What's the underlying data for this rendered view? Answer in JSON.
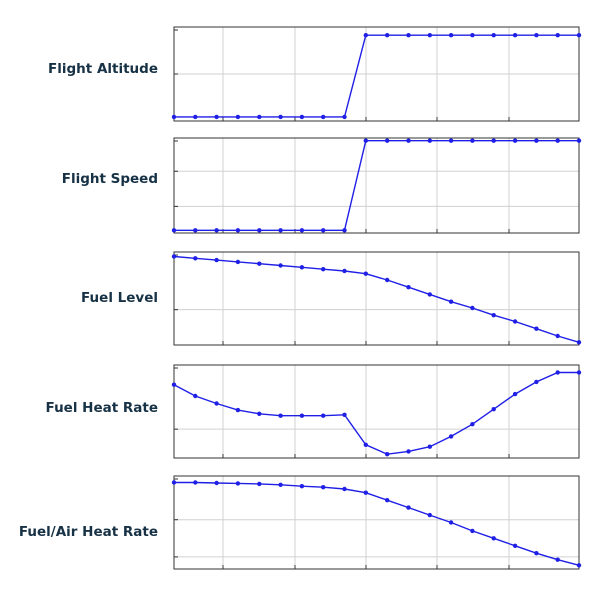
{
  "colors": {
    "line": "#1f1fe6",
    "grid": "#d0d0d0",
    "frame": "#333333",
    "label": "#173145"
  },
  "chart_data": [
    {
      "type": "line",
      "ylabel": "Flight Altitude",
      "grid": true,
      "x": [
        0,
        1,
        2,
        3,
        4,
        5,
        6,
        7,
        8,
        9,
        10,
        11,
        12,
        13,
        14,
        15,
        16,
        17,
        18,
        19
      ],
      "series": [
        {
          "values": [
            0.0,
            0.0,
            0.0,
            0.0,
            0.0,
            0.0,
            0.0,
            0.0,
            0.0,
            1.0,
            1.0,
            1.0,
            1.0,
            1.0,
            1.0,
            1.0,
            1.0,
            1.0,
            1.0,
            1.0
          ]
        }
      ],
      "ylim": [
        -0.05,
        1.1
      ]
    },
    {
      "type": "line",
      "ylabel": "Flight Speed",
      "grid": true,
      "x": [
        0,
        1,
        2,
        3,
        4,
        5,
        6,
        7,
        8,
        9,
        10,
        11,
        12,
        13,
        14,
        15,
        16,
        17,
        18,
        19
      ],
      "series": [
        {
          "values": [
            0.0,
            0.0,
            0.0,
            0.0,
            0.0,
            0.0,
            0.0,
            0.0,
            0.0,
            1.0,
            1.0,
            1.0,
            1.0,
            1.0,
            1.0,
            1.0,
            1.0,
            1.0,
            1.0,
            1.0
          ]
        }
      ],
      "ylim": [
        -0.03,
        1.03
      ]
    },
    {
      "type": "line",
      "ylabel": "Fuel Level",
      "grid": true,
      "x": [
        0,
        1,
        2,
        3,
        4,
        5,
        6,
        7,
        8,
        9,
        10,
        11,
        12,
        13,
        14,
        15,
        16,
        17,
        18,
        19
      ],
      "series": [
        {
          "values": [
            0.98,
            0.96,
            0.94,
            0.92,
            0.9,
            0.88,
            0.86,
            0.84,
            0.82,
            0.79,
            0.72,
            0.64,
            0.56,
            0.48,
            0.41,
            0.33,
            0.26,
            0.18,
            0.1,
            0.03
          ]
        }
      ],
      "ylim": [
        0.0,
        1.03
      ]
    },
    {
      "type": "line",
      "ylabel": "Fuel Heat Rate",
      "grid": true,
      "x": [
        0,
        1,
        2,
        3,
        4,
        5,
        6,
        7,
        8,
        9,
        10,
        11,
        12,
        13,
        14,
        15,
        16,
        17,
        18,
        19
      ],
      "series": [
        {
          "values": [
            0.78,
            0.66,
            0.58,
            0.51,
            0.47,
            0.45,
            0.45,
            0.45,
            0.46,
            0.14,
            0.04,
            0.07,
            0.12,
            0.23,
            0.36,
            0.52,
            0.68,
            0.81,
            0.91,
            0.91
          ]
        }
      ],
      "ylim": [
        0.0,
        0.99
      ]
    },
    {
      "type": "line",
      "ylabel": "Fuel/Air Heat Rate",
      "grid": true,
      "x": [
        0,
        1,
        2,
        3,
        4,
        5,
        6,
        7,
        8,
        9,
        10,
        11,
        12,
        13,
        14,
        15,
        16,
        17,
        18,
        19
      ],
      "series": [
        {
          "values": [
            0.93,
            0.93,
            0.925,
            0.92,
            0.915,
            0.905,
            0.89,
            0.88,
            0.86,
            0.82,
            0.74,
            0.66,
            0.58,
            0.5,
            0.41,
            0.33,
            0.25,
            0.17,
            0.1,
            0.04
          ]
        }
      ],
      "ylim": [
        0.0,
        1.0
      ]
    }
  ]
}
